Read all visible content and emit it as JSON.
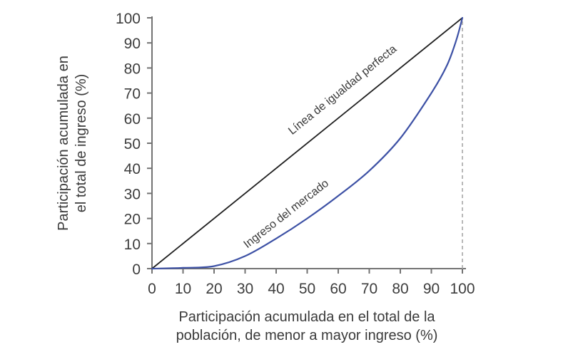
{
  "chart_data": {
    "type": "line",
    "title": "",
    "xlabel_lines": [
      "Participación acumulada en el total de la",
      "población, de menor a mayor ingreso (%)"
    ],
    "ylabel_lines": [
      "Participación acumulada en",
      "el total de ingreso (%)"
    ],
    "xlim": [
      0,
      100
    ],
    "ylim": [
      0,
      100
    ],
    "xticks": [
      0,
      10,
      20,
      30,
      40,
      50,
      60,
      70,
      80,
      90,
      100
    ],
    "yticks": [
      0,
      10,
      20,
      30,
      40,
      50,
      60,
      70,
      80,
      90,
      100
    ],
    "grid": false,
    "legend": "inline-labels",
    "series": [
      {
        "name": "Línea de igualdad perfecta",
        "color": "#1f1f1f",
        "width": 1.8,
        "x": [
          0,
          100
        ],
        "y": [
          0,
          100
        ]
      },
      {
        "name": "Ingreso del mercado",
        "color": "#3d51a5",
        "width": 2.2,
        "x": [
          0,
          10,
          20,
          30,
          40,
          50,
          60,
          70,
          80,
          90,
          95,
          98,
          100
        ],
        "y": [
          0,
          0.3,
          1,
          5,
          12,
          20,
          29,
          39,
          52,
          70,
          81,
          91,
          100
        ]
      }
    ],
    "reference_lines": [
      {
        "axis": "x",
        "value": 100,
        "color": "#b0b0b0",
        "dash": "5 4"
      }
    ],
    "colors": {
      "axis": "#737373",
      "text": "#3a3a3a",
      "curve_blue": "#3d51a5",
      "equality_black": "#1f1f1f",
      "dashed_gray": "#b0b0b0",
      "background": "#ffffff"
    }
  }
}
